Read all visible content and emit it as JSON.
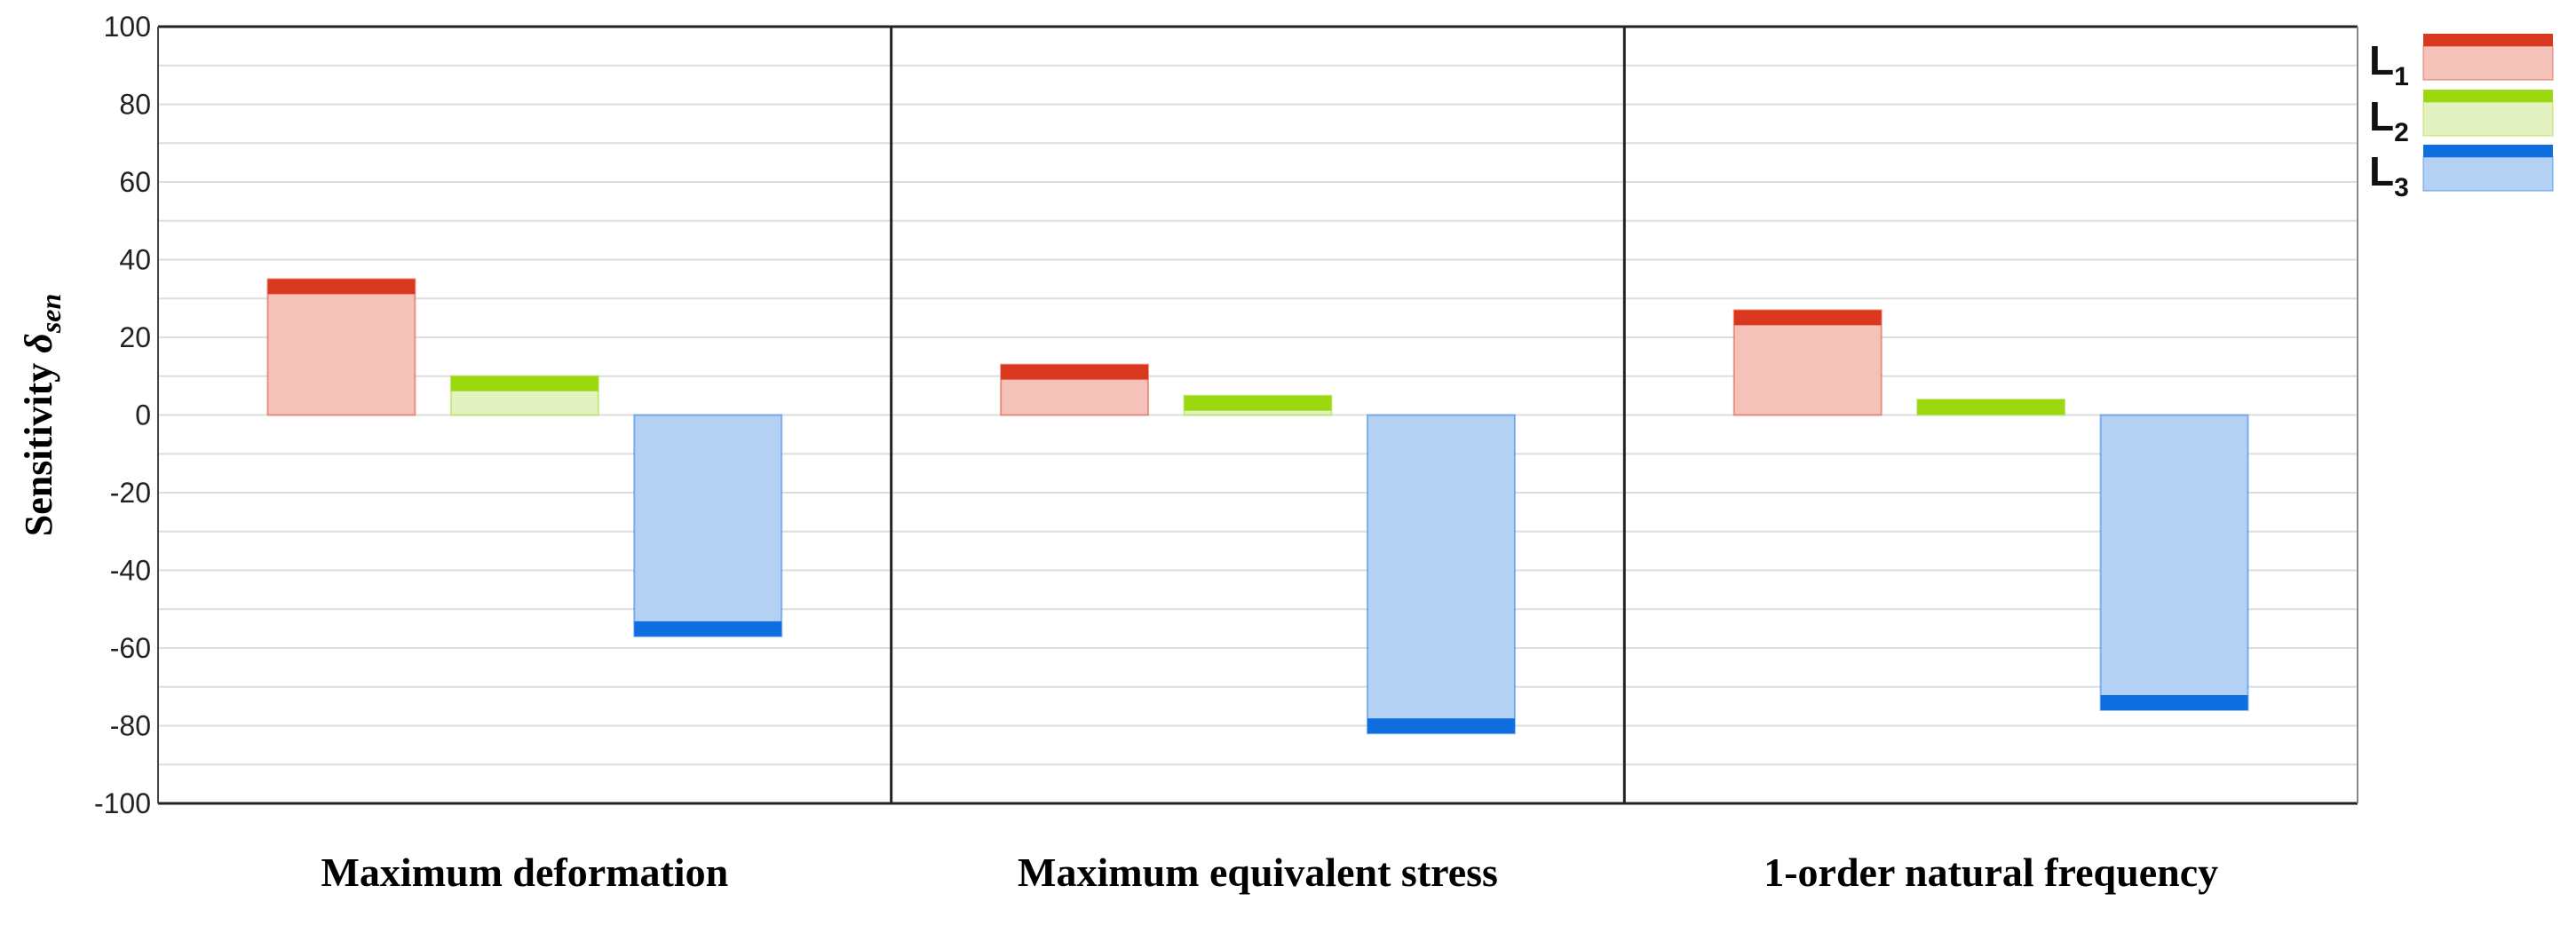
{
  "chart_data": {
    "type": "bar",
    "title": "",
    "xlabel": "",
    "ylabel": "Sensitivity",
    "ylabel_symbol": "δ",
    "ylabel_subscript": "sen",
    "ylim": [
      -100,
      100
    ],
    "yticks": [
      100,
      80,
      60,
      40,
      20,
      0,
      -20,
      -40,
      -60,
      -80,
      -100
    ],
    "grid": true,
    "legend_position": "right",
    "categories": [
      "Maximum deformation",
      "Maximum equivalent stress",
      "1-order natural frequency"
    ],
    "series": [
      {
        "name": "L",
        "subscript": "1",
        "values": [
          35,
          13,
          27
        ],
        "color": "#d9381e",
        "fill": "#f4c2b8"
      },
      {
        "name": "L",
        "subscript": "2",
        "values": [
          10,
          5,
          4
        ],
        "color": "#9bd80f",
        "fill": "#e3f2c0"
      },
      {
        "name": "L",
        "subscript": "3",
        "values": [
          -57,
          -82,
          -76
        ],
        "color": "#0f6fe0",
        "fill": "#b4d1f4"
      }
    ]
  }
}
